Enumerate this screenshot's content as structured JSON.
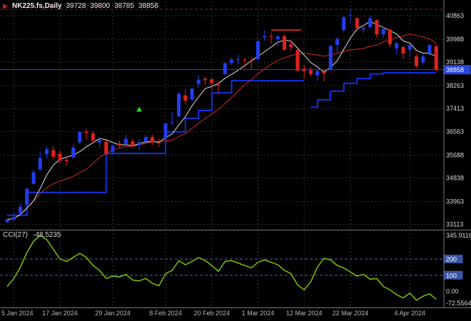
{
  "header": {
    "title": "NK225.fs,Daily",
    "open": "39728",
    "high": "39800",
    "low": "38785",
    "close": "38858",
    "icon": "triangle-marker-icon"
  },
  "colors": {
    "background": "#000000",
    "up": "#233df0",
    "down": "#e32020",
    "ma_fast": "#e0e0e0",
    "ma_slow": "#d02828",
    "step": "#1330e0",
    "price_line": "#2846e0",
    "price_box": "#2846e0",
    "cci": "#7fd000",
    "grid": "#333333",
    "level": "#5064a0",
    "level_box": "#3a55a4",
    "separator": "#787878",
    "axis_text": "#d8d8d8",
    "date_text": "#b8b8b8",
    "marker": "#2fd22f"
  },
  "chart_data": {
    "type": "candlestick",
    "symbol": "NK225.fs",
    "timeframe": "Daily",
    "title": "NK225.fs,Daily 39728 39800 38785 38858",
    "current_price": 38858,
    "current_price_label": "38858",
    "price_axis": {
      "values": [
        40863,
        39988,
        39138,
        38263,
        37413,
        36563,
        35688,
        34838,
        33963,
        33113
      ],
      "max": 40863,
      "min": 33113
    },
    "x_axis": {
      "tick_indices": [
        1,
        8,
        16,
        24,
        31,
        38,
        45,
        52,
        61
      ],
      "tick_labels": [
        "5 Jan 2024",
        "17 Jan 2024",
        "29 Jan 2024",
        "8 Feb 2024",
        "20 Feb 2024",
        "1 Mar 2024",
        "12 Mar 2024",
        "22 Mar 2024",
        "4 Apr 2024"
      ]
    },
    "candles": [
      [
        33200,
        33330,
        33150,
        33288
      ],
      [
        33290,
        33570,
        33220,
        33377
      ],
      [
        33520,
        33870,
        33470,
        33763
      ],
      [
        33850,
        34450,
        33820,
        34441
      ],
      [
        34620,
        35157,
        34580,
        35049
      ],
      [
        35150,
        35839,
        35090,
        35577
      ],
      [
        35720,
        36008,
        35560,
        35901
      ],
      [
        35864,
        36020,
        35512,
        35619
      ],
      [
        35740,
        35855,
        35380,
        35477
      ],
      [
        35510,
        35600,
        35270,
        35466
      ],
      [
        35600,
        36076,
        35550,
        35963
      ],
      [
        36160,
        36571,
        36090,
        36546
      ],
      [
        36560,
        36660,
        36230,
        36517
      ],
      [
        36500,
        36570,
        36120,
        36226
      ],
      [
        36150,
        36350,
        35970,
        36236
      ],
      [
        36180,
        36240,
        35687,
        35751
      ],
      [
        35800,
        36100,
        35690,
        36026
      ],
      [
        36120,
        36250,
        35940,
        36065
      ],
      [
        36100,
        36440,
        36060,
        36287
      ],
      [
        36200,
        36300,
        35980,
        36011
      ],
      [
        36050,
        36280,
        35880,
        36158
      ],
      [
        36190,
        36440,
        36090,
        36354
      ],
      [
        36350,
        36440,
        36060,
        36160
      ],
      [
        36150,
        36310,
        36000,
        36119
      ],
      [
        36300,
        36900,
        36250,
        36863
      ],
      [
        36890,
        37290,
        36800,
        36897
      ],
      [
        37130,
        38010,
        37080,
        37963
      ],
      [
        37900,
        38130,
        37590,
        37703
      ],
      [
        37750,
        38190,
        37680,
        38157
      ],
      [
        38330,
        38660,
        38180,
        38487
      ],
      [
        38520,
        38600,
        38290,
        38470
      ],
      [
        38500,
        38560,
        38090,
        38363
      ],
      [
        38300,
        38400,
        37950,
        38262
      ],
      [
        38690,
        39130,
        38640,
        39098
      ],
      [
        39110,
        39290,
        39030,
        39233
      ],
      [
        39210,
        39430,
        39060,
        39239
      ],
      [
        39230,
        39300,
        38930,
        39208
      ],
      [
        39200,
        39340,
        38876,
        39166
      ],
      [
        39250,
        39990,
        39180,
        39910
      ],
      [
        40060,
        40330,
        39940,
        40109
      ],
      [
        40100,
        40230,
        39830,
        40097
      ],
      [
        39990,
        40130,
        39740,
        40090
      ],
      [
        40100,
        40170,
        39570,
        39598
      ],
      [
        39800,
        39989,
        39540,
        39688
      ],
      [
        39590,
        39620,
        38780,
        38820
      ],
      [
        38900,
        39030,
        38520,
        38797
      ],
      [
        38840,
        38960,
        38590,
        38695
      ],
      [
        38640,
        38850,
        38440,
        38807
      ],
      [
        38780,
        38880,
        38420,
        38708
      ],
      [
        38880,
        39750,
        38820,
        39740
      ],
      [
        39780,
        40070,
        39470,
        40003
      ],
      [
        40330,
        40830,
        40240,
        40815
      ],
      [
        40860,
        41088,
        40580,
        40888
      ],
      [
        40770,
        40800,
        40280,
        40414
      ],
      [
        40350,
        40530,
        40220,
        40398
      ],
      [
        40440,
        40865,
        40390,
        40762
      ],
      [
        40700,
        40730,
        40040,
        40168
      ],
      [
        40170,
        40440,
        40050,
        40369
      ],
      [
        40350,
        40400,
        39680,
        39803
      ],
      [
        39650,
        39900,
        39430,
        39839
      ],
      [
        39700,
        39750,
        39240,
        39451
      ],
      [
        39600,
        39810,
        39340,
        39773
      ],
      [
        39350,
        39450,
        38920,
        38992
      ],
      [
        39130,
        39460,
        39040,
        39347
      ],
      [
        39480,
        39820,
        39370,
        39773
      ],
      [
        39728,
        39800,
        38785,
        38858
      ]
    ],
    "overlays": {
      "ma_fast_period": 5,
      "ma_slow_period": 13,
      "step_segments": [
        [
          [
            0,
            33450
          ],
          [
            3,
            34300
          ],
          [
            15,
            35750
          ],
          [
            24,
            36550
          ],
          [
            27,
            37050
          ],
          [
            29,
            37340
          ],
          [
            31,
            38000
          ],
          [
            34,
            38450
          ],
          [
            45,
            38450
          ]
        ],
        [
          [
            46,
            37470
          ],
          [
            47,
            37740
          ],
          [
            49,
            38060
          ],
          [
            51,
            38350
          ],
          [
            53,
            38530
          ],
          [
            55,
            38700
          ],
          [
            57,
            38744
          ],
          [
            65,
            38744
          ]
        ]
      ],
      "hlines": [
        {
          "price": 41100,
          "color": "#7e2020",
          "style": "dashed",
          "full": true,
          "width": 1
        },
        {
          "price": 40330,
          "color": "#c32222",
          "style": "solid",
          "from": 40,
          "to": 44.5,
          "width": 2
        }
      ],
      "marker": {
        "index": 20,
        "price": 37380,
        "glyph": "up-arrow"
      }
    },
    "indicator": {
      "name": "CCI(27)",
      "value": "-48.5235",
      "scale_max": 345.9116,
      "scale_min": -72.5564,
      "levels": [
        200,
        100
      ],
      "axis_labels": {
        "top": "345.9116",
        "level_200": "200",
        "level_100": "100",
        "zero": "0.00",
        "bottom": "-72.5564"
      },
      "values": [
        30,
        80,
        150,
        240,
        310,
        345.91,
        320,
        260,
        200,
        185,
        210,
        235,
        210,
        160,
        130,
        80,
        95,
        90,
        105,
        70,
        65,
        80,
        50,
        35,
        110,
        130,
        190,
        165,
        185,
        210,
        190,
        160,
        125,
        185,
        190,
        175,
        160,
        145,
        180,
        195,
        180,
        165,
        130,
        110,
        40,
        10,
        60,
        150,
        205,
        195,
        160,
        145,
        120,
        95,
        105,
        75,
        80,
        30,
        10,
        -20,
        -40,
        -10,
        -55,
        -30,
        -15,
        -48.5235
      ]
    }
  }
}
